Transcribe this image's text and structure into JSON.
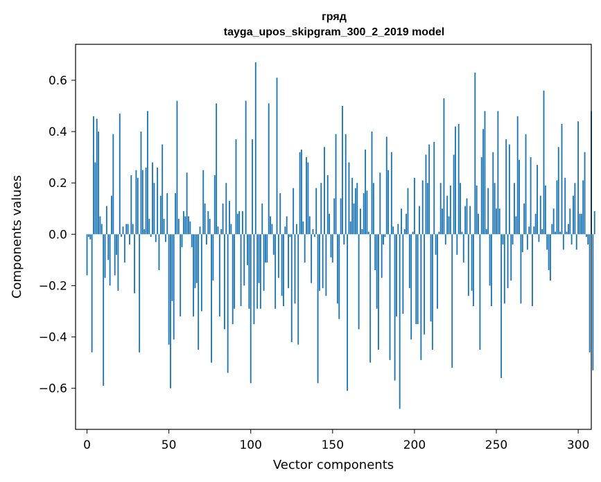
{
  "chart_data": {
    "type": "bar",
    "title": "гряд",
    "subtitle": "tayga_upos_skipgram_300_2_2019 model",
    "xlabel": "Vector components",
    "ylabel": "Components values",
    "xlim": [
      -7,
      308
    ],
    "ylim": [
      -0.76,
      0.74
    ],
    "xticks": [
      0,
      50,
      100,
      150,
      200,
      250,
      300
    ],
    "xtick_labels": [
      "0",
      "50",
      "100",
      "150",
      "200",
      "250",
      "300"
    ],
    "yticks": [
      -0.6,
      -0.4,
      -0.2,
      0.0,
      0.2,
      0.4,
      0.6
    ],
    "ytick_labels": [
      "−0.6",
      "−0.4",
      "−0.2",
      "0.0",
      "0.2",
      "0.4",
      "0.6"
    ],
    "bar_color": "#1f77b4",
    "series": [
      {
        "name": "гряд",
        "values": [
          -0.16,
          -0.01,
          -0.02,
          -0.46,
          0.46,
          0.28,
          0.45,
          0.4,
          0.07,
          0.04,
          -0.59,
          -0.17,
          0.11,
          -0.1,
          -0.2,
          0.15,
          0.39,
          -0.16,
          -0.08,
          -0.22,
          0.47,
          -0.01,
          0.03,
          -0.11,
          0.04,
          0.04,
          -0.04,
          0.23,
          0.04,
          -0.23,
          0.25,
          0.22,
          -0.46,
          0.4,
          0.25,
          0.02,
          0.26,
          0.48,
          0.06,
          -0.01,
          0.28,
          0.2,
          -0.03,
          0.26,
          -0.14,
          0.15,
          0.35,
          0.06,
          -0.03,
          0.16,
          -0.43,
          -0.6,
          -0.26,
          -0.41,
          0.16,
          0.52,
          0.06,
          -0.32,
          -0.05,
          0.09,
          0.07,
          0.24,
          0.07,
          0.05,
          -0.05,
          -0.32,
          -0.21,
          -0.19,
          -0.45,
          0.03,
          -0.3,
          0.25,
          0.12,
          -0.04,
          0.09,
          0.06,
          -0.5,
          -0.18,
          0.23,
          0.51,
          0.03,
          -0.32,
          0.02,
          0.12,
          -0.37,
          0.2,
          -0.54,
          0.13,
          0.04,
          -0.35,
          -0.29,
          0.37,
          0.08,
          0.09,
          -0.28,
          0.09,
          -0.2,
          0.52,
          -0.12,
          -0.29,
          -0.58,
          0.37,
          -0.35,
          0.67,
          -0.29,
          -0.19,
          -0.29,
          0.12,
          -0.22,
          -0.11,
          -0.11,
          0.51,
          0.07,
          0.04,
          -0.08,
          -0.29,
          0.61,
          -0.17,
          0.16,
          -0.24,
          -0.28,
          0.03,
          0.07,
          -0.21,
          -0.01,
          -0.42,
          0.18,
          -0.27,
          0.04,
          -0.43,
          0.32,
          0.33,
          0.05,
          -0.11,
          0.3,
          0.28,
          0.07,
          -0.19,
          0.02,
          -0.01,
          0.18,
          -0.58,
          -0.22,
          0.2,
          -0.21,
          0.34,
          -0.24,
          0.23,
          0.08,
          -0.09,
          -0.11,
          0.14,
          0.39,
          -0.27,
          -0.33,
          0.14,
          0.5,
          -0.04,
          0.39,
          -0.61,
          0.28,
          0.05,
          0.22,
          0.12,
          0.18,
          0.2,
          -0.37,
          0.1,
          0.02,
          0.16,
          0.33,
          0.17,
          0.01,
          -0.5,
          0.4,
          0.2,
          -0.14,
          -0.29,
          -0.45,
          0.24,
          -0.17,
          -0.04,
          -0.01,
          0.38,
          0.25,
          -0.49,
          0.32,
          0.03,
          -0.57,
          -0.32,
          0.04,
          -0.68,
          0.1,
          -0.31,
          0.02,
          0.08,
          0.18,
          -0.21,
          -0.41,
          0.01,
          0.22,
          -0.35,
          -0.35,
          0.11,
          -0.49,
          0.21,
          -0.39,
          0.31,
          0.2,
          0.35,
          -0.34,
          -0.45,
          0.36,
          -0.08,
          -0.29,
          0.01,
          0.2,
          0.1,
          0.53,
          -0.04,
          0.15,
          0.07,
          0.19,
          -0.52,
          0.31,
          0.42,
          -0.08,
          0.43,
          0.2,
          0.01,
          -0.11,
          0.11,
          0.14,
          -0.24,
          0.11,
          -0.22,
          -0.28,
          0.63,
          0.19,
          0.08,
          -0.45,
          0.3,
          0.41,
          0.48,
          0.02,
          0.18,
          -0.2,
          -0.28,
          0.32,
          0.2,
          0.1,
          0.48,
          0.1,
          -0.56,
          -0.04,
          -0.27,
          0.37,
          -0.21,
          0.35,
          -0.18,
          -0.04,
          0.2,
          0.07,
          0.46,
          0.29,
          -0.27,
          -0.07,
          0.12,
          0.39,
          -0.06,
          0.03,
          0.3,
          -0.28,
          0.03,
          0.08,
          0.27,
          -0.03,
          0.15,
          0.02,
          0.56,
          0.19,
          -0.06,
          -0.14,
          -0.18,
          0.04,
          0.1,
          0.01,
          0.21,
          0.34,
          0.01,
          0.43,
          -0.06,
          0.22,
          0.01,
          0.04,
          0.1,
          -0.04,
          0.15,
          0.2,
          -0.06,
          0.44,
          0.08,
          0.08,
          0.21,
          0.32,
          -0.01,
          -0.04,
          -0.46,
          0.48,
          -0.53,
          0.09
        ]
      }
    ]
  }
}
